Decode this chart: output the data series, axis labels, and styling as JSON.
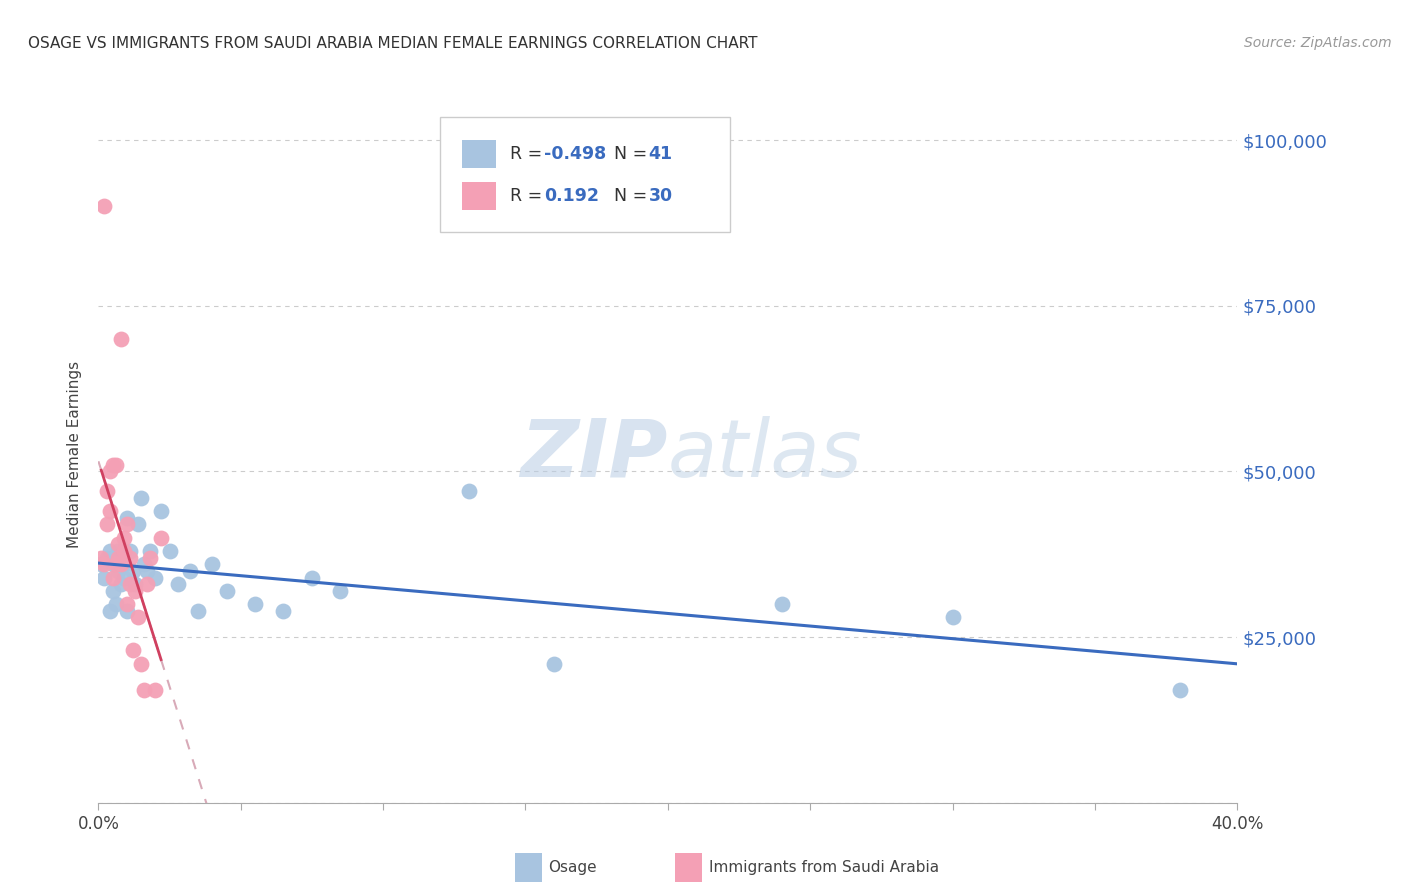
{
  "title": "OSAGE VS IMMIGRANTS FROM SAUDI ARABIA MEDIAN FEMALE EARNINGS CORRELATION CHART",
  "source": "Source: ZipAtlas.com",
  "ylabel": "Median Female Earnings",
  "r_osage": -0.498,
  "n_osage": 41,
  "r_saudi": 0.192,
  "n_saudi": 30,
  "xlim": [
    0.0,
    0.4
  ],
  "ylim": [
    0,
    105000
  ],
  "yticks": [
    0,
    25000,
    50000,
    75000,
    100000
  ],
  "ytick_labels": [
    "",
    "$25,000",
    "$50,000",
    "$75,000",
    "$100,000"
  ],
  "xticks": [
    0.0,
    0.05,
    0.1,
    0.15,
    0.2,
    0.25,
    0.3,
    0.35,
    0.4
  ],
  "color_osage": "#a8c4e0",
  "color_saudi": "#f4a0b5",
  "line_color_osage": "#3a6bbf",
  "line_color_saudi": "#d04060",
  "dashed_line_color": "#d8aab8",
  "watermark_zip": "ZIP",
  "watermark_atlas": "atlas",
  "background_color": "#ffffff",
  "grid_color": "#cccccc",
  "osage_x": [
    0.001,
    0.002,
    0.003,
    0.004,
    0.004,
    0.005,
    0.005,
    0.006,
    0.007,
    0.007,
    0.008,
    0.008,
    0.009,
    0.009,
    0.01,
    0.01,
    0.011,
    0.012,
    0.013,
    0.014,
    0.015,
    0.016,
    0.017,
    0.018,
    0.02,
    0.022,
    0.025,
    0.028,
    0.032,
    0.035,
    0.04,
    0.045,
    0.055,
    0.065,
    0.075,
    0.085,
    0.13,
    0.16,
    0.24,
    0.3,
    0.38
  ],
  "osage_y": [
    36000,
    34000,
    37000,
    29000,
    38000,
    32000,
    36000,
    30000,
    38000,
    35000,
    33000,
    37000,
    36000,
    34000,
    29000,
    43000,
    38000,
    35000,
    33000,
    42000,
    46000,
    36000,
    35000,
    38000,
    34000,
    44000,
    38000,
    33000,
    35000,
    29000,
    36000,
    32000,
    30000,
    29000,
    34000,
    32000,
    47000,
    21000,
    30000,
    28000,
    17000
  ],
  "saudi_x": [
    0.001,
    0.002,
    0.002,
    0.003,
    0.003,
    0.004,
    0.004,
    0.005,
    0.005,
    0.006,
    0.006,
    0.007,
    0.007,
    0.008,
    0.008,
    0.009,
    0.009,
    0.01,
    0.01,
    0.011,
    0.011,
    0.012,
    0.013,
    0.014,
    0.015,
    0.016,
    0.017,
    0.018,
    0.02,
    0.022
  ],
  "saudi_y": [
    37000,
    36000,
    90000,
    42000,
    47000,
    44000,
    50000,
    34000,
    51000,
    51000,
    36000,
    37000,
    39000,
    70000,
    36000,
    40000,
    38000,
    42000,
    30000,
    37000,
    33000,
    23000,
    32000,
    28000,
    21000,
    17000,
    33000,
    37000,
    17000,
    40000
  ]
}
